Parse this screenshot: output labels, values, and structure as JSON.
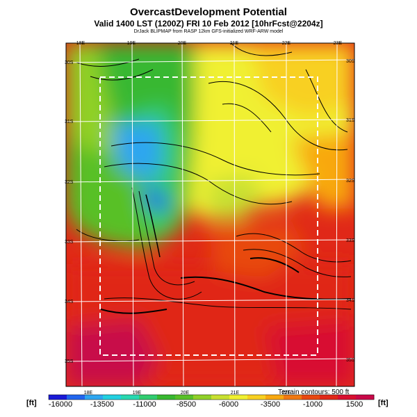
{
  "header": {
    "title": "OvercastDevelopment Potential",
    "subtitle": "Valid 1400 LST (1200Z) FRI 10 Feb 2012 [10hrFcst@2204z]",
    "credit": "DrJack BLIPMAP from RASP 12km GFS-initialized WRF-ARW model"
  },
  "map": {
    "lon_labels_top": [
      "18E",
      "19E",
      "20E",
      "21E",
      "22E",
      "23E"
    ],
    "lon_labels_bottom": [
      "18E",
      "19E",
      "20E",
      "21E",
      "22E"
    ],
    "lat_labels_left": [
      "30S",
      "31S",
      "32S",
      "33S",
      "34S",
      "35S"
    ],
    "lat_labels_right": [
      "30S",
      "31S",
      "32S",
      "33S",
      "34S",
      "35S"
    ],
    "terrain_note": "Terrain contours: 500 ft"
  },
  "colorbar": {
    "unit_left": "[ft]",
    "unit_right": "[ft]",
    "tick_labels": [
      "-16000",
      "-13500",
      "-11000",
      "-8500",
      "-6000",
      "-3500",
      "-1000",
      "1500"
    ],
    "colors": [
      "#1a1ad6",
      "#2266ee",
      "#2ea6f0",
      "#22d0e0",
      "#28d8b0",
      "#30cc70",
      "#38b830",
      "#58c028",
      "#90d028",
      "#c8e030",
      "#f0f030",
      "#f8d020",
      "#f8a810",
      "#f07810",
      "#e84810",
      "#e02818",
      "#d81030",
      "#c80848"
    ]
  }
}
